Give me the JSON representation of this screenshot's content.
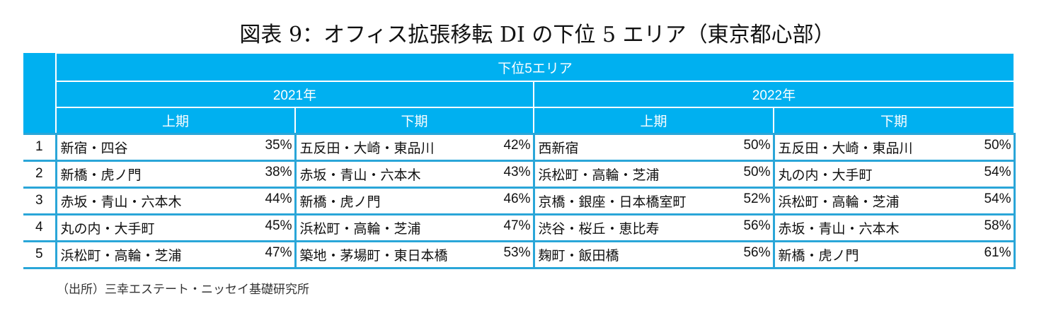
{
  "title": "図表 9：オフィス拡張移転 DI の下位 5 エリア（東京都心部）",
  "header": {
    "top": "下位5エリア",
    "years": [
      "2021年",
      "2022年"
    ],
    "halves": [
      "上期",
      "下期",
      "上期",
      "下期"
    ]
  },
  "rows": [
    {
      "rank": "1",
      "cells": [
        [
          "新宿・四谷",
          "35%"
        ],
        [
          "五反田・大崎・東品川",
          "42%"
        ],
        [
          "西新宿",
          "50%"
        ],
        [
          "五反田・大崎・東品川",
          "50%"
        ]
      ]
    },
    {
      "rank": "2",
      "cells": [
        [
          "新橋・虎ノ門",
          "38%"
        ],
        [
          "赤坂・青山・六本木",
          "43%"
        ],
        [
          "浜松町・高輪・芝浦",
          "50%"
        ],
        [
          "丸の内・大手町",
          "54%"
        ]
      ]
    },
    {
      "rank": "3",
      "cells": [
        [
          "赤坂・青山・六本木",
          "44%"
        ],
        [
          "新橋・虎ノ門",
          "46%"
        ],
        [
          "京橋・銀座・日本橋室町",
          "52%"
        ],
        [
          "浜松町・高輪・芝浦",
          "54%"
        ]
      ]
    },
    {
      "rank": "4",
      "cells": [
        [
          "丸の内・大手町",
          "45%"
        ],
        [
          "浜松町・高輪・芝浦",
          "47%"
        ],
        [
          "渋谷・桜丘・恵比寿",
          "56%"
        ],
        [
          "赤坂・青山・六本木",
          "58%"
        ]
      ]
    },
    {
      "rank": "5",
      "cells": [
        [
          "浜松町・高輪・芝浦",
          "47%"
        ],
        [
          "築地・茅場町・東日本橋",
          "53%"
        ],
        [
          "麹町・飯田橋",
          "56%"
        ],
        [
          "新橋・虎ノ門",
          "61%"
        ]
      ]
    }
  ],
  "source": "（出所）三幸エステート・ニッセイ基礎研究所"
}
